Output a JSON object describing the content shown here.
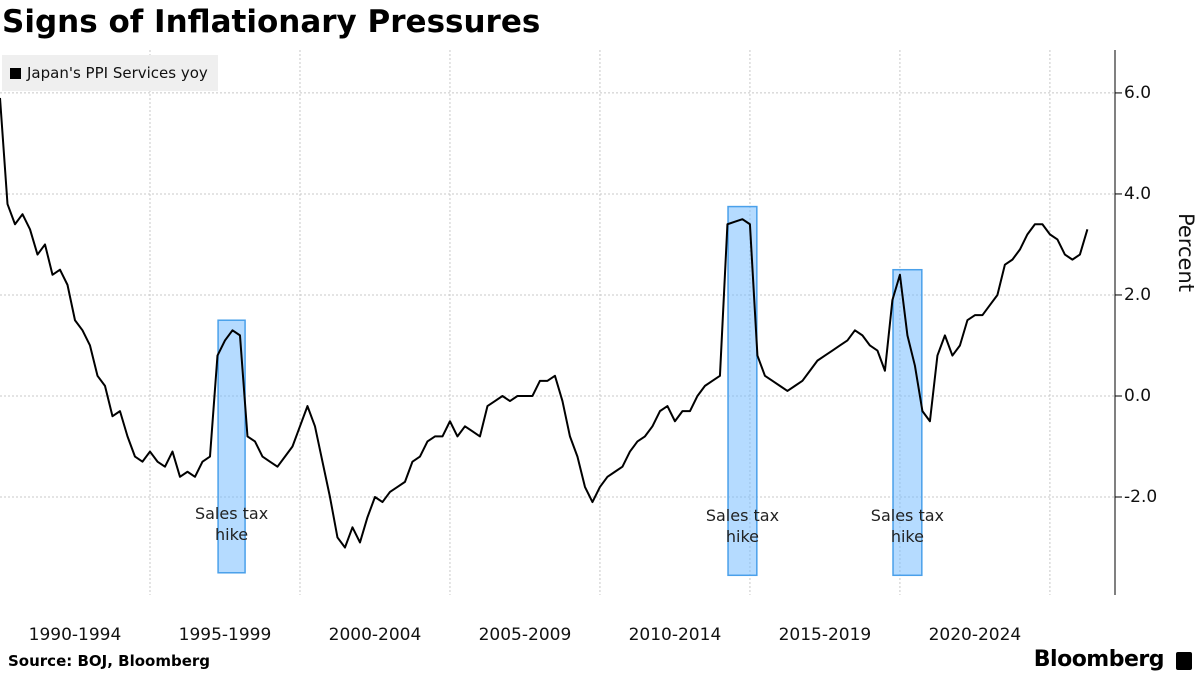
{
  "chart_data": {
    "type": "line",
    "title": "Signs of Inflationary Pressures",
    "y_label": "Percent",
    "source": "Source: BOJ, Bloomberg",
    "brand": "Bloomberg",
    "legend": "top-left",
    "grid": true,
    "xlim": [
      1990,
      2027.17
    ],
    "ylim": [
      -3.94,
      6.85
    ],
    "xticks": [
      {
        "value": 1990,
        "label": "1990-1994"
      },
      {
        "value": 1995,
        "label": "1995-1999"
      },
      {
        "value": 2000,
        "label": "2000-2004"
      },
      {
        "value": 2005,
        "label": "2005-2009"
      },
      {
        "value": 2010,
        "label": "2010-2014"
      },
      {
        "value": 2015,
        "label": "2015-2019"
      },
      {
        "value": 2020,
        "label": "2020-2024"
      },
      {
        "value": 2025,
        "label": ""
      }
    ],
    "yticks": [
      {
        "value": 6,
        "label": "6.0"
      },
      {
        "value": 4,
        "label": "4.0"
      },
      {
        "value": 2,
        "label": "2.0"
      },
      {
        "value": 0,
        "label": "0.0"
      },
      {
        "value": -2,
        "label": "-2.0"
      }
    ],
    "x": [
      1990,
      1990.25,
      1990.5,
      1990.75,
      1991,
      1991.25,
      1991.5,
      1991.75,
      1992,
      1992.25,
      1992.5,
      1992.75,
      1993,
      1993.25,
      1993.5,
      1993.75,
      1994,
      1994.25,
      1994.5,
      1994.75,
      1995,
      1995.25,
      1995.5,
      1995.75,
      1996,
      1996.25,
      1996.5,
      1996.75,
      1997,
      1997.25,
      1997.5,
      1997.75,
      1998,
      1998.25,
      1998.5,
      1998.75,
      1999,
      1999.25,
      1999.5,
      1999.75,
      2000,
      2000.25,
      2000.5,
      2000.75,
      2001,
      2001.25,
      2001.5,
      2001.75,
      2002,
      2002.25,
      2002.5,
      2002.75,
      2003,
      2003.25,
      2003.5,
      2003.75,
      2004,
      2004.25,
      2004.5,
      2004.75,
      2005,
      2005.25,
      2005.5,
      2005.75,
      2006,
      2006.25,
      2006.5,
      2006.75,
      2007,
      2007.25,
      2007.5,
      2007.75,
      2008,
      2008.25,
      2008.5,
      2008.75,
      2009,
      2009.25,
      2009.5,
      2009.75,
      2010,
      2010.25,
      2010.5,
      2010.75,
      2011,
      2011.25,
      2011.5,
      2011.75,
      2012,
      2012.25,
      2012.5,
      2012.75,
      2013,
      2013.25,
      2013.5,
      2013.75,
      2014,
      2014.25,
      2014.5,
      2014.75,
      2015,
      2015.25,
      2015.5,
      2015.75,
      2016,
      2016.25,
      2016.5,
      2016.75,
      2017,
      2017.25,
      2017.5,
      2017.75,
      2018,
      2018.25,
      2018.5,
      2018.75,
      2019,
      2019.25,
      2019.5,
      2019.75,
      2020,
      2020.25,
      2020.5,
      2020.75,
      2021,
      2021.25,
      2021.5,
      2021.75,
      2022,
      2022.25,
      2022.5,
      2022.75,
      2023,
      2023.25,
      2023.5,
      2023.75,
      2024,
      2024.25,
      2024.5,
      2024.75,
      2025,
      2025.25,
      2025.5,
      2025.75,
      2026,
      2026.25
    ],
    "series": [
      {
        "name": "Japan's PPI Services yoy",
        "color": "#000000",
        "values": [
          5.9,
          3.8,
          3.4,
          3.6,
          3.3,
          2.8,
          3.0,
          2.4,
          2.5,
          2.2,
          1.5,
          1.3,
          1.0,
          0.4,
          0.2,
          -0.4,
          -0.3,
          -0.8,
          -1.2,
          -1.3,
          -1.1,
          -1.3,
          -1.4,
          -1.1,
          -1.6,
          -1.5,
          -1.6,
          -1.3,
          -1.2,
          0.8,
          1.1,
          1.3,
          1.2,
          -0.8,
          -0.9,
          -1.2,
          -1.3,
          -1.4,
          -1.2,
          -1.0,
          -0.6,
          -0.2,
          -0.6,
          -1.3,
          -2.0,
          -2.8,
          -3.0,
          -2.6,
          -2.9,
          -2.4,
          -2.0,
          -2.1,
          -1.9,
          -1.8,
          -1.7,
          -1.3,
          -1.2,
          -0.9,
          -0.8,
          -0.8,
          -0.5,
          -0.8,
          -0.6,
          -0.7,
          -0.8,
          -0.2,
          -0.1,
          0.0,
          -0.1,
          0.0,
          0.0,
          0.0,
          0.3,
          0.3,
          0.4,
          -0.1,
          -0.8,
          -1.2,
          -1.8,
          -2.1,
          -1.8,
          -1.6,
          -1.5,
          -1.4,
          -1.1,
          -0.9,
          -0.8,
          -0.6,
          -0.3,
          -0.2,
          -0.5,
          -0.3,
          -0.3,
          0.0,
          0.2,
          0.3,
          0.4,
          3.4,
          3.45,
          3.5,
          3.4,
          0.8,
          0.4,
          0.3,
          0.2,
          0.1,
          0.2,
          0.3,
          0.5,
          0.7,
          0.8,
          0.9,
          1.0,
          1.1,
          1.3,
          1.2,
          1.0,
          0.9,
          0.5,
          1.9,
          2.4,
          1.2,
          0.6,
          -0.3,
          -0.5,
          0.8,
          1.2,
          0.8,
          1.0,
          1.5,
          1.6,
          1.6,
          1.8,
          2.0,
          2.6,
          2.7,
          2.9,
          3.2,
          3.4,
          3.4,
          3.2,
          3.1,
          2.8,
          2.7,
          2.8,
          3.3
        ]
      }
    ],
    "shaded_regions": [
      {
        "x": [
          1997.27,
          1998.17
        ],
        "y": [
          -3.5,
          1.5
        ],
        "label": "Sales tax hike"
      },
      {
        "x": [
          2014.27,
          2015.23
        ],
        "y": [
          -3.55,
          3.75
        ],
        "label": "Sales tax hike"
      },
      {
        "x": [
          2019.77,
          2020.73
        ],
        "y": [
          -3.55,
          2.5
        ],
        "label": "Sales tax hike"
      }
    ]
  }
}
